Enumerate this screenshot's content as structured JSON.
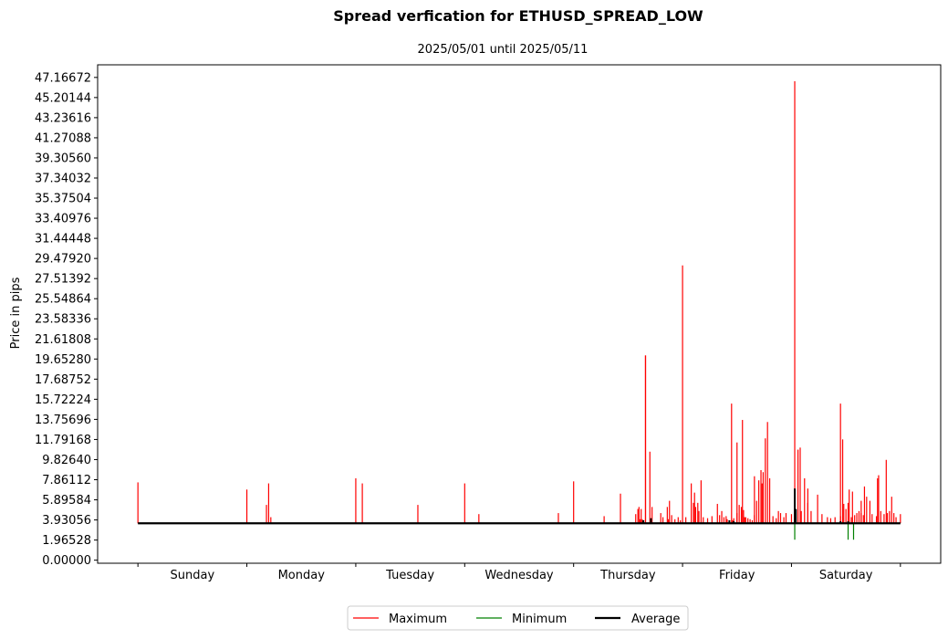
{
  "chart_data": {
    "type": "line",
    "title": "Spread verfication for ETHUSD_SPREAD_LOW",
    "subtitle": "2025/05/01 until 2025/05/11",
    "ylabel": "Price in pips",
    "xlabel": "",
    "ylim": [
      -0.3,
      48.4
    ],
    "xlim": [
      -0.37,
      7.37
    ],
    "y_ticks": [
      "0.00000",
      "1.96528",
      "3.93056",
      "5.89584",
      "7.86112",
      "9.82640",
      "11.79168",
      "13.75696",
      "15.72224",
      "17.68752",
      "19.65280",
      "21.61808",
      "23.58336",
      "25.54864",
      "27.51392",
      "29.47920",
      "31.44448",
      "33.40976",
      "35.37504",
      "37.34032",
      "39.30560",
      "41.27088",
      "43.23616",
      "45.20144",
      "47.16672"
    ],
    "categories": [
      "Sunday",
      "Monday",
      "Tuesday",
      "Wednesday",
      "Thursday",
      "Friday",
      "Saturday"
    ],
    "legend": {
      "placement": "bottom-center",
      "columns": 3
    },
    "grid": false,
    "baseline": 3.6,
    "series": [
      {
        "name": "Maximum",
        "color": "#ff0000",
        "line_width": 1,
        "spikes": [
          [
            0.0,
            7.6
          ],
          [
            1.0,
            6.9
          ],
          [
            1.18,
            5.4
          ],
          [
            1.2,
            7.5
          ],
          [
            1.22,
            4.2
          ],
          [
            2.0,
            8.0
          ],
          [
            2.06,
            7.5
          ],
          [
            2.57,
            5.4
          ],
          [
            3.0,
            7.5
          ],
          [
            3.13,
            4.5
          ],
          [
            3.86,
            4.6
          ],
          [
            4.0,
            7.7
          ],
          [
            4.28,
            4.3
          ],
          [
            4.43,
            6.5
          ],
          [
            4.57,
            4.5
          ],
          [
            4.59,
            5.0
          ],
          [
            4.6,
            5.2
          ],
          [
            4.61,
            4.0
          ],
          [
            4.62,
            5.0
          ],
          [
            4.63,
            4.0
          ],
          [
            4.66,
            20.0
          ],
          [
            4.7,
            10.6
          ],
          [
            4.72,
            5.2
          ],
          [
            4.8,
            4.6
          ],
          [
            4.82,
            4.2
          ],
          [
            4.86,
            5.2
          ],
          [
            4.87,
            4.0
          ],
          [
            4.88,
            5.8
          ],
          [
            4.9,
            4.4
          ],
          [
            4.93,
            4.0
          ],
          [
            4.96,
            4.2
          ],
          [
            4.98,
            3.9
          ],
          [
            5.03,
            4.2
          ],
          [
            5.08,
            7.5
          ],
          [
            5.1,
            5.6
          ],
          [
            5.11,
            6.6
          ],
          [
            5.12,
            5.2
          ],
          [
            5.14,
            5.6
          ],
          [
            5.15,
            4.8
          ],
          [
            5.17,
            7.8
          ],
          [
            5.19,
            4.2
          ],
          [
            5.23,
            4.1
          ],
          [
            5.27,
            4.3
          ],
          [
            5.32,
            5.5
          ],
          [
            5.38,
            4.2
          ],
          [
            5.41,
            4.0
          ],
          [
            5.46,
            3.9
          ],
          [
            5.5,
            4.6
          ],
          [
            5.52,
            5.4
          ],
          [
            5.54,
            5.2
          ],
          [
            5.56,
            4.9
          ],
          [
            5.57,
            4.2
          ],
          [
            5.6,
            4.1
          ],
          [
            5.62,
            4.0
          ],
          [
            5.64,
            3.9
          ],
          [
            5.66,
            4.4
          ],
          [
            5.68,
            5.8
          ],
          [
            5.7,
            7.8
          ],
          [
            5.72,
            8.8
          ],
          [
            5.73,
            7.5
          ],
          [
            5.76,
            11.9
          ],
          [
            5.78,
            13.5
          ],
          [
            5.8,
            8.0
          ],
          [
            5.83,
            4.3
          ],
          [
            5.88,
            4.8
          ],
          [
            5.9,
            4.6
          ],
          [
            5.93,
            4.2
          ],
          [
            6.0,
            4.5
          ],
          [
            6.03,
            4.8
          ],
          [
            6.06,
            10.8
          ],
          [
            6.12,
            8.0
          ],
          [
            6.15,
            5.6
          ],
          [
            6.18,
            4.8
          ],
          [
            6.24,
            6.4
          ],
          [
            6.28,
            4.5
          ],
          [
            6.4,
            4.2
          ],
          [
            6.45,
            4.3
          ],
          [
            6.48,
            5.5
          ],
          [
            6.5,
            5.0
          ],
          [
            6.52,
            5.6
          ],
          [
            6.55,
            4.2
          ],
          [
            6.58,
            4.4
          ],
          [
            6.6,
            4.6
          ],
          [
            6.62,
            4.8
          ],
          [
            6.64,
            4.6
          ],
          [
            6.66,
            4.4
          ],
          [
            6.69,
            6.2
          ],
          [
            6.72,
            5.8
          ],
          [
            6.74,
            4.5
          ],
          [
            6.78,
            4.3
          ],
          [
            6.82,
            4.8
          ],
          [
            6.85,
            4.5
          ],
          [
            6.88,
            4.6
          ],
          [
            6.9,
            4.8
          ],
          [
            6.92,
            6.2
          ],
          [
            6.96,
            4.2
          ],
          [
            7.0,
            4.5
          ],
          [
            5.34,
            4.4
          ],
          [
            5.36,
            4.8
          ],
          [
            5.4,
            4.3
          ],
          [
            5.47,
            4.1
          ],
          [
            5.58,
            4.2
          ],
          [
            5.74,
            8.6
          ],
          [
            5.86,
            4.1
          ],
          [
            5.95,
            4.6
          ],
          [
            6.09,
            4.8
          ],
          [
            6.33,
            4.2
          ],
          [
            6.36,
            4.1
          ],
          [
            6.67,
            7.2
          ],
          [
            6.79,
            8.0
          ],
          [
            6.94,
            4.6
          ]
        ],
        "labeled_peaks": [
          [
            4.66,
            20.0
          ],
          [
            5.0,
            28.8
          ],
          [
            5.45,
            15.3
          ],
          [
            5.5,
            11.5
          ],
          [
            5.55,
            13.7
          ],
          [
            5.66,
            8.2
          ],
          [
            6.03,
            46.8
          ],
          [
            6.08,
            11.0
          ],
          [
            6.15,
            7.0
          ],
          [
            6.45,
            15.3
          ],
          [
            6.47,
            11.8
          ],
          [
            6.53,
            6.9
          ],
          [
            6.56,
            6.7
          ],
          [
            6.64,
            5.8
          ],
          [
            6.8,
            8.3
          ],
          [
            6.87,
            9.8
          ]
        ]
      },
      {
        "name": "Minimum",
        "color": "#008000",
        "line_width": 1,
        "spikes": [
          [
            6.03,
            2.0
          ],
          [
            6.52,
            2.0
          ],
          [
            6.57,
            2.0
          ]
        ]
      },
      {
        "name": "Average",
        "color": "#000000",
        "line_width": 2,
        "spikes": [
          [
            4.64,
            3.9
          ],
          [
            4.71,
            4.1
          ],
          [
            5.43,
            3.9
          ],
          [
            5.47,
            3.8
          ],
          [
            6.03,
            7.0
          ],
          [
            6.04,
            5.0
          ],
          [
            6.45,
            3.8
          ],
          [
            6.52,
            3.8
          ]
        ]
      }
    ]
  }
}
